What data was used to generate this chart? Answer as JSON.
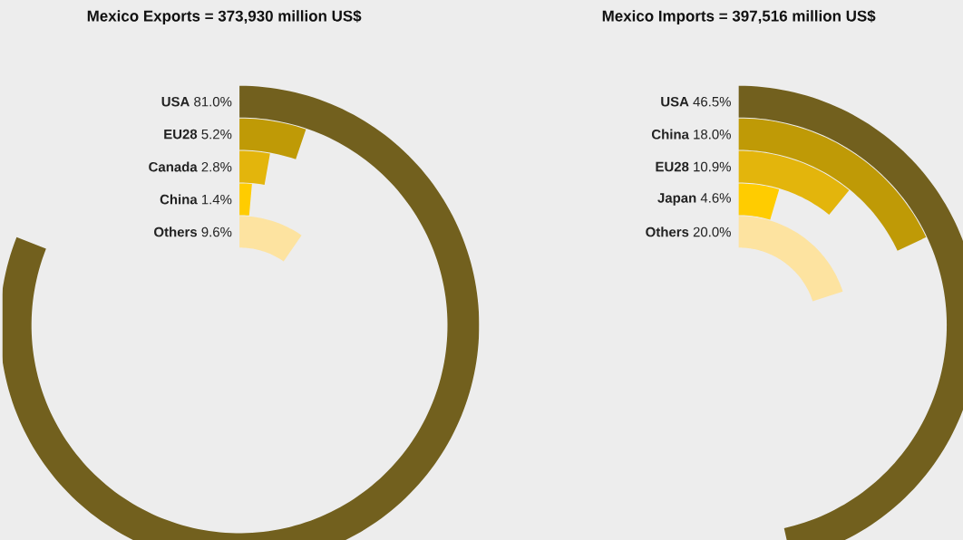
{
  "chart_data": [
    {
      "type": "other",
      "title": "Mexico Exports = 373,930 million US$",
      "categories": [
        "USA",
        "EU28",
        "Canada",
        "China",
        "Others"
      ],
      "values": [
        81.0,
        5.2,
        2.8,
        1.4,
        9.6
      ],
      "value_labels": [
        "81.0%",
        "5.2%",
        "2.8%",
        "1.4%",
        "9.6%"
      ],
      "colors": [
        "#72601e",
        "#bf9a06",
        "#e3b50c",
        "#ffcc00",
        "#fde3a0"
      ]
    },
    {
      "type": "other",
      "title": "Mexico Imports = 397,516 million US$",
      "categories": [
        "USA",
        "China",
        "EU28",
        "Japan",
        "Others"
      ],
      "values": [
        46.5,
        18.0,
        10.9,
        4.6,
        20.0
      ],
      "value_labels": [
        "46.5%",
        "18.0%",
        "10.9%",
        "4.6%",
        "20.0%"
      ],
      "colors": [
        "#72601e",
        "#bf9a06",
        "#e3b50c",
        "#ffcc00",
        "#fde3a0"
      ]
    }
  ]
}
